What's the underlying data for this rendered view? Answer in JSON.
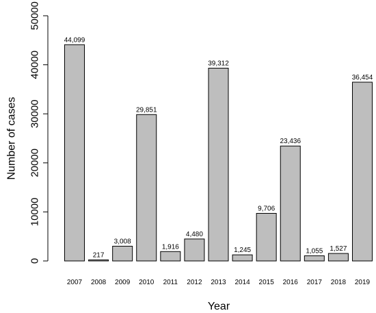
{
  "chart_data": {
    "type": "bar",
    "title": "",
    "xlabel": "Year",
    "ylabel": "Number of cases",
    "categories": [
      "2007",
      "2008",
      "2009",
      "2010",
      "2011",
      "2012",
      "2013",
      "2014",
      "2015",
      "2016",
      "2017",
      "2018",
      "2019"
    ],
    "values": [
      44099,
      217,
      3008,
      29851,
      1916,
      4480,
      39312,
      1245,
      9706,
      23436,
      1055,
      1527,
      36454
    ],
    "value_labels": [
      "44,099",
      "217",
      "3,008",
      "29,851",
      "1,916",
      "4,480",
      "39,312",
      "1,245",
      "9,706",
      "23,436",
      "1,055",
      "1,527",
      "36,454"
    ],
    "ylim": [
      0,
      50000
    ],
    "yticks": [
      0,
      10000,
      20000,
      30000,
      40000,
      50000
    ],
    "ytick_labels": [
      "0",
      "10000",
      "20000",
      "30000",
      "40000",
      "50000"
    ],
    "grid": false,
    "bar_color": "#bebebe",
    "bar_edge_color": "#000000"
  }
}
